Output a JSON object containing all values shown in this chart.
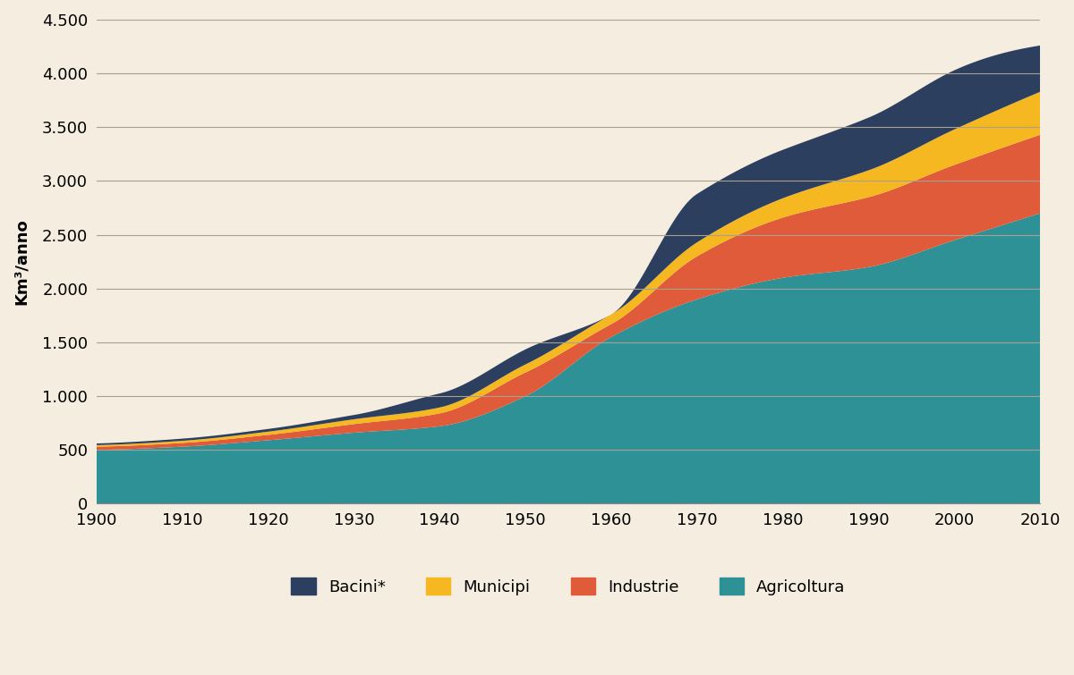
{
  "years": [
    1900,
    1910,
    1920,
    1930,
    1940,
    1950,
    1960,
    1970,
    1980,
    1990,
    2000,
    2010
  ],
  "agricoltura": [
    500,
    530,
    590,
    660,
    720,
    1000,
    1550,
    1900,
    2100,
    2200,
    2450,
    2700
  ],
  "industrie": [
    30,
    35,
    50,
    80,
    120,
    220,
    120,
    400,
    560,
    650,
    700,
    730
  ],
  "municipi": [
    15,
    20,
    30,
    45,
    55,
    75,
    90,
    130,
    180,
    250,
    330,
    400
  ],
  "bacini": [
    15,
    20,
    25,
    40,
    130,
    140,
    0,
    450,
    450,
    490,
    550,
    430
  ],
  "colors": {
    "agricoltura": "#2e9196",
    "industrie": "#e05b3a",
    "municipi": "#f5b820",
    "bacini": "#2d3f5f"
  },
  "background_color": "#f5ede0",
  "grid_color": "#aaa090",
  "ylabel": "Km³/anno",
  "ylim": [
    0,
    4500
  ],
  "yticks": [
    0,
    500,
    1000,
    1500,
    2000,
    2500,
    3000,
    3500,
    4000,
    4500
  ],
  "ytick_labels": [
    "0",
    "500",
    "1.000",
    "1.500",
    "2.000",
    "2.500",
    "3.000",
    "3.500",
    "4.000",
    "4.500"
  ],
  "xticks": [
    1900,
    1910,
    1920,
    1930,
    1940,
    1950,
    1960,
    1970,
    1980,
    1990,
    2000,
    2010
  ],
  "legend_labels": [
    "Bacini*",
    "Municipi",
    "Industrie",
    "Agricoltura"
  ],
  "legend_colors": [
    "#2d3f5f",
    "#f5b820",
    "#e05b3a",
    "#2e9196"
  ]
}
